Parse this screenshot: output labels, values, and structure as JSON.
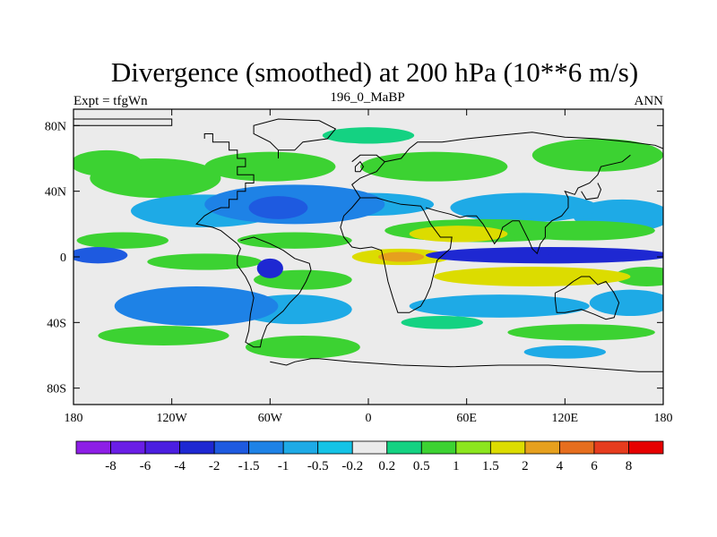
{
  "chart_data": {
    "type": "heatmap",
    "title": "Divergence (smoothed) at 200 hPa (10**6 m/s)",
    "subtitle_left": "Expt = tfgWn",
    "subtitle_center": "196_0_MaBP",
    "subtitle_right": "ANN",
    "x_range": [
      -180,
      180
    ],
    "y_range": [
      -90,
      90
    ],
    "x_ticks": [
      {
        "value": -180,
        "label": "180"
      },
      {
        "value": -120,
        "label": "120W"
      },
      {
        "value": -60,
        "label": "60W"
      },
      {
        "value": 0,
        "label": "0"
      },
      {
        "value": 60,
        "label": "60E"
      },
      {
        "value": 120,
        "label": "120E"
      },
      {
        "value": 180,
        "label": "180"
      }
    ],
    "y_ticks": [
      {
        "value": 80,
        "label": "80N"
      },
      {
        "value": 40,
        "label": "40N"
      },
      {
        "value": 0,
        "label": "0"
      },
      {
        "value": -40,
        "label": "40S"
      },
      {
        "value": -80,
        "label": "80S"
      }
    ],
    "colorbar": {
      "levels": [
        "-8",
        "-6",
        "-4",
        "-2",
        "-1.5",
        "-1",
        "-0.5",
        "-0.2",
        "0.2",
        "0.5",
        "1",
        "1.5",
        "2",
        "4",
        "6",
        "8"
      ],
      "colors": [
        "#8d1ee6",
        "#6a1ee6",
        "#4b1ee0",
        "#1e28d2",
        "#1e5ae0",
        "#1e82e6",
        "#1eaae6",
        "#14c3e6",
        "#ebebeb",
        "#14d282",
        "#3cd232",
        "#8ce61e",
        "#dcdc00",
        "#e6a01e",
        "#e66e1e",
        "#e63c1e",
        "#e60000"
      ]
    },
    "field_blobs": [
      {
        "lon": -45,
        "lat": 32,
        "rlon": 55,
        "rlat": 12,
        "value": -1.3
      },
      {
        "lon": -100,
        "lat": 28,
        "rlon": 45,
        "rlat": 10,
        "value": -0.9
      },
      {
        "lon": -55,
        "lat": 30,
        "rlon": 18,
        "rlat": 7,
        "value": -1.8
      },
      {
        "lon": 95,
        "lat": 30,
        "rlon": 45,
        "rlat": 9,
        "value": -0.7
      },
      {
        "lon": 155,
        "lat": 25,
        "rlon": 30,
        "rlat": 10,
        "value": -0.6
      },
      {
        "lon": 0,
        "lat": 32,
        "rlon": 40,
        "rlat": 7,
        "value": -0.5
      },
      {
        "lon": -130,
        "lat": 48,
        "rlon": 40,
        "rlat": 12,
        "value": 0.6
      },
      {
        "lon": -160,
        "lat": 57,
        "rlon": 22,
        "rlat": 8,
        "value": 0.9
      },
      {
        "lon": -60,
        "lat": 55,
        "rlon": 40,
        "rlat": 9,
        "value": 0.6
      },
      {
        "lon": 40,
        "lat": 55,
        "rlon": 45,
        "rlat": 9,
        "value": 0.6
      },
      {
        "lon": 140,
        "lat": 62,
        "rlon": 40,
        "rlat": 10,
        "value": 0.6
      },
      {
        "lon": 0,
        "lat": 74,
        "rlon": 28,
        "rlat": 5,
        "value": 0.5
      },
      {
        "lon": 70,
        "lat": 16,
        "rlon": 60,
        "rlat": 7,
        "value": 0.8
      },
      {
        "lon": 55,
        "lat": 14,
        "rlon": 30,
        "rlat": 5,
        "value": 1.8
      },
      {
        "lon": 130,
        "lat": 16,
        "rlon": 45,
        "rlat": 6,
        "value": 0.8
      },
      {
        "lon": -150,
        "lat": 10,
        "rlon": 28,
        "rlat": 5,
        "value": 0.7
      },
      {
        "lon": -45,
        "lat": 10,
        "rlon": 35,
        "rlat": 5,
        "value": 0.8
      },
      {
        "lon": 110,
        "lat": 1,
        "rlon": 75,
        "rlat": 5,
        "value": -2.5
      },
      {
        "lon": 140,
        "lat": 1,
        "rlon": 30,
        "rlat": 4,
        "value": -3.5
      },
      {
        "lon": -165,
        "lat": 1,
        "rlon": 18,
        "rlat": 5,
        "value": -1.6
      },
      {
        "lon": 20,
        "lat": 0,
        "rlon": 30,
        "rlat": 5,
        "value": 1.8
      },
      {
        "lon": 20,
        "lat": 0,
        "rlon": 14,
        "rlat": 3,
        "value": 2.4
      },
      {
        "lon": -100,
        "lat": -3,
        "rlon": 35,
        "rlat": 5,
        "value": 0.6
      },
      {
        "lon": -60,
        "lat": -7,
        "rlon": 8,
        "rlat": 6,
        "value": -2.5
      },
      {
        "lon": 100,
        "lat": -12,
        "rlon": 60,
        "rlat": 6,
        "value": 1.7
      },
      {
        "lon": 170,
        "lat": -12,
        "rlon": 20,
        "rlat": 6,
        "value": 1.0
      },
      {
        "lon": -40,
        "lat": -14,
        "rlon": 30,
        "rlat": 6,
        "value": 0.7
      },
      {
        "lon": -105,
        "lat": -30,
        "rlon": 50,
        "rlat": 12,
        "value": -1.2
      },
      {
        "lon": -45,
        "lat": -32,
        "rlon": 35,
        "rlat": 9,
        "value": -0.9
      },
      {
        "lon": 80,
        "lat": -30,
        "rlon": 55,
        "rlat": 7,
        "value": -0.8
      },
      {
        "lon": 160,
        "lat": -28,
        "rlon": 25,
        "rlat": 8,
        "value": -0.6
      },
      {
        "lon": -125,
        "lat": -48,
        "rlon": 40,
        "rlat": 6,
        "value": 0.8
      },
      {
        "lon": -40,
        "lat": -55,
        "rlon": 35,
        "rlat": 7,
        "value": 0.7
      },
      {
        "lon": 130,
        "lat": -46,
        "rlon": 45,
        "rlat": 5,
        "value": 0.6
      },
      {
        "lon": 120,
        "lat": -58,
        "rlon": 25,
        "rlat": 4,
        "value": -0.6
      },
      {
        "lon": 45,
        "lat": -40,
        "rlon": 25,
        "rlat": 4,
        "value": 0.5
      }
    ]
  }
}
